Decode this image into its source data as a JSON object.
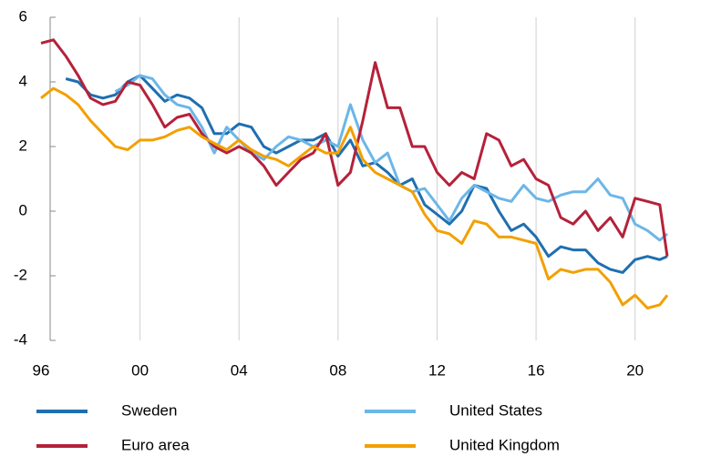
{
  "chart_data": {
    "type": "line",
    "x": [
      1996,
      1996.5,
      1997,
      1997.5,
      1998,
      1998.5,
      1999,
      1999.5,
      2000,
      2000.5,
      2001,
      2001.5,
      2002,
      2002.5,
      2003,
      2003.5,
      2004,
      2004.5,
      2005,
      2005.5,
      2006,
      2006.5,
      2007,
      2007.5,
      2008,
      2008.5,
      2009,
      2009.5,
      2010,
      2010.5,
      2011,
      2011.5,
      2012,
      2012.5,
      2013,
      2013.5,
      2014,
      2014.5,
      2015,
      2015.5,
      2016,
      2016.5,
      2017,
      2017.5,
      2018,
      2018.5,
      2019,
      2019.5,
      2020,
      2020.5,
      2021,
      2021.3
    ],
    "series": [
      {
        "name": "Sweden",
        "color": "#1f6fb0",
        "values": [
          null,
          null,
          4.1,
          4.0,
          3.6,
          3.5,
          3.6,
          4.0,
          4.2,
          3.8,
          3.4,
          3.6,
          3.5,
          3.2,
          2.4,
          2.4,
          2.7,
          2.6,
          2.0,
          1.8,
          2.0,
          2.2,
          2.2,
          2.4,
          1.7,
          2.2,
          1.4,
          1.5,
          1.2,
          0.8,
          1.0,
          0.2,
          -0.1,
          -0.4,
          0.0,
          0.8,
          0.7,
          0.0,
          -0.6,
          -0.4,
          -0.8,
          -1.4,
          -1.1,
          -1.2,
          -1.2,
          -1.6,
          -1.8,
          -1.9,
          -1.5,
          -1.4,
          -1.5,
          -1.4
        ]
      },
      {
        "name": "United States",
        "color": "#6cb6e8",
        "values": [
          null,
          null,
          null,
          null,
          null,
          null,
          3.7,
          3.9,
          4.2,
          4.1,
          3.6,
          3.3,
          3.2,
          2.6,
          1.8,
          2.6,
          2.2,
          1.8,
          1.6,
          2.0,
          2.3,
          2.2,
          2.0,
          2.2,
          2.0,
          3.3,
          2.2,
          1.5,
          1.8,
          0.8,
          0.6,
          0.7,
          0.2,
          -0.3,
          0.4,
          0.8,
          0.6,
          0.4,
          0.3,
          0.8,
          0.4,
          0.3,
          0.5,
          0.6,
          0.6,
          1.0,
          0.5,
          0.4,
          -0.4,
          -0.6,
          -0.9,
          -0.7
        ]
      },
      {
        "name": "Euro area",
        "color": "#b5213a",
        "values": [
          5.2,
          5.3,
          4.8,
          4.2,
          3.5,
          3.3,
          3.4,
          4.0,
          3.9,
          3.3,
          2.6,
          2.9,
          3.0,
          2.4,
          2.0,
          1.8,
          2.0,
          1.8,
          1.4,
          0.8,
          1.2,
          1.6,
          1.8,
          2.4,
          0.8,
          1.2,
          2.8,
          4.6,
          3.2,
          3.2,
          2.0,
          2.0,
          1.2,
          0.8,
          1.2,
          1.0,
          2.4,
          2.2,
          1.4,
          1.6,
          1.0,
          0.8,
          -0.2,
          -0.4,
          0.0,
          -0.6,
          -0.2,
          -0.8,
          0.4,
          0.3,
          0.2,
          -1.4
        ]
      },
      {
        "name": "United Kingdom",
        "color": "#f2a000",
        "values": [
          3.5,
          3.8,
          3.6,
          3.3,
          2.8,
          2.4,
          2.0,
          1.9,
          2.2,
          2.2,
          2.3,
          2.5,
          2.6,
          2.3,
          2.1,
          1.9,
          2.2,
          1.9,
          1.7,
          1.6,
          1.4,
          1.7,
          2.0,
          1.8,
          1.8,
          2.6,
          1.6,
          1.2,
          1.0,
          0.8,
          0.6,
          -0.1,
          -0.6,
          -0.7,
          -1.0,
          -0.3,
          -0.4,
          -0.8,
          -0.8,
          -0.9,
          -1.0,
          -2.1,
          -1.8,
          -1.9,
          -1.8,
          -1.8,
          -2.2,
          -2.9,
          -2.6,
          -3.0,
          -2.9,
          -2.6
        ]
      }
    ],
    "xlim": [
      1996,
      2022
    ],
    "xticks": [
      {
        "value": 1996,
        "label": "96"
      },
      {
        "value": 2000,
        "label": "00"
      },
      {
        "value": 2004,
        "label": "04"
      },
      {
        "value": 2008,
        "label": "08"
      },
      {
        "value": 2012,
        "label": "12"
      },
      {
        "value": 2016,
        "label": "16"
      },
      {
        "value": 2020,
        "label": "20"
      }
    ],
    "ylim": [
      -4,
      6
    ],
    "yticks": [
      -4,
      -2,
      0,
      2,
      4,
      6
    ],
    "grid": true,
    "legend": "bottom"
  }
}
